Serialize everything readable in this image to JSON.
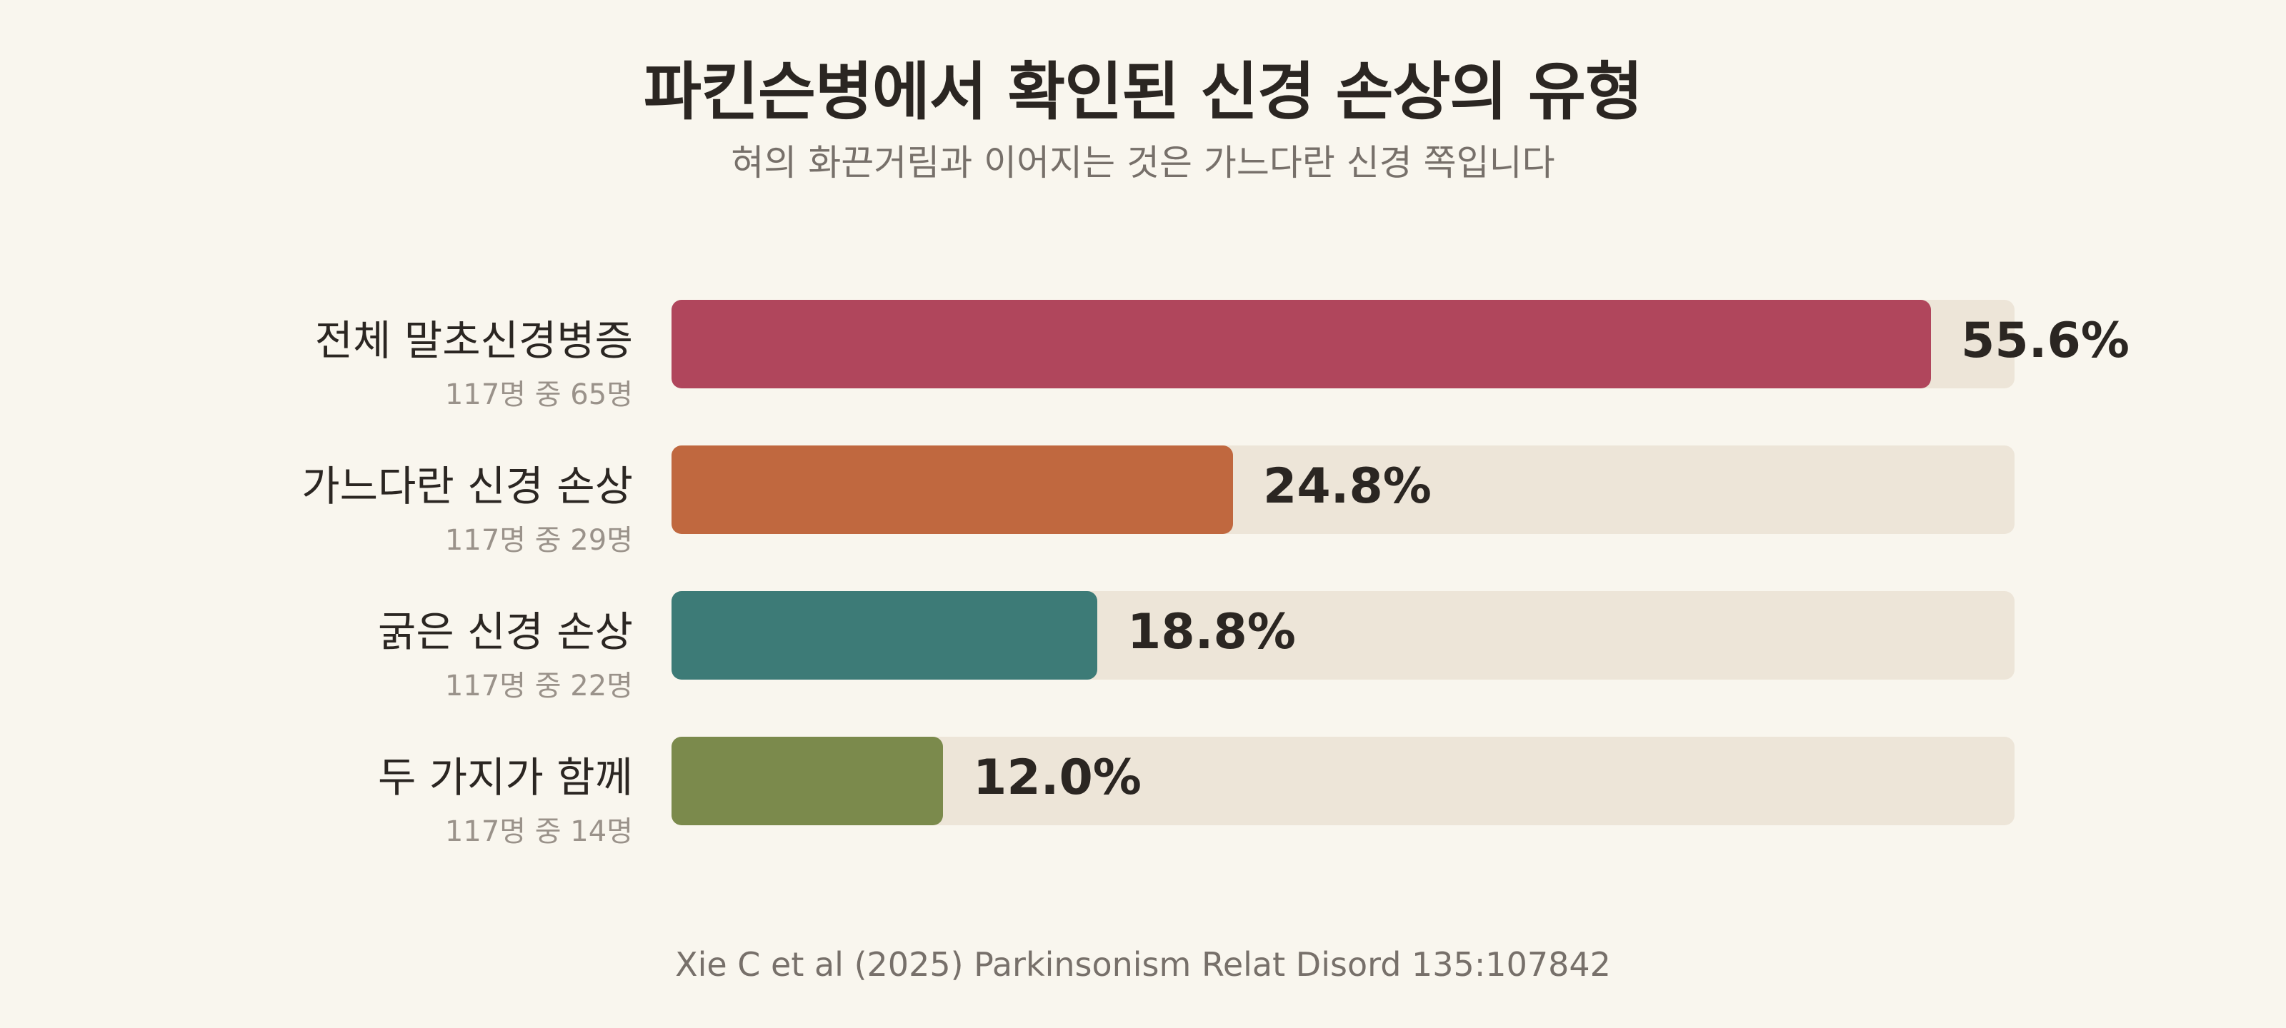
{
  "chart_data": {
    "type": "bar",
    "orientation": "horizontal",
    "title": "파킨슨병에서 확인된 신경 손상의 유형",
    "subtitle": "혀의 화끈거림과 이어지는 것은 가느다란 신경 쪽입니다",
    "source": "Xie C et al (2025) Parkinsonism Relat Disord 135:107842",
    "xlim": [
      0,
      60
    ],
    "grid": false,
    "value_suffix": "%",
    "bars": [
      {
        "label": "전체 말초신경병증",
        "sublabel": "117명 중 65명",
        "value": 55.6,
        "value_text": "55.6%",
        "color": "#b0465c"
      },
      {
        "label": "가느다란 신경 손상",
        "sublabel": "117명 중 29명",
        "value": 24.8,
        "value_text": "24.8%",
        "color": "#c0683f"
      },
      {
        "label": "굵은 신경 손상",
        "sublabel": "117명 중 22명",
        "value": 18.8,
        "value_text": "18.8%",
        "color": "#3d7b77"
      },
      {
        "label": "두 가지가 함께",
        "sublabel": "117명 중 14명",
        "value": 12.0,
        "value_text": "12.0%",
        "color": "#7b8a4c"
      }
    ]
  }
}
